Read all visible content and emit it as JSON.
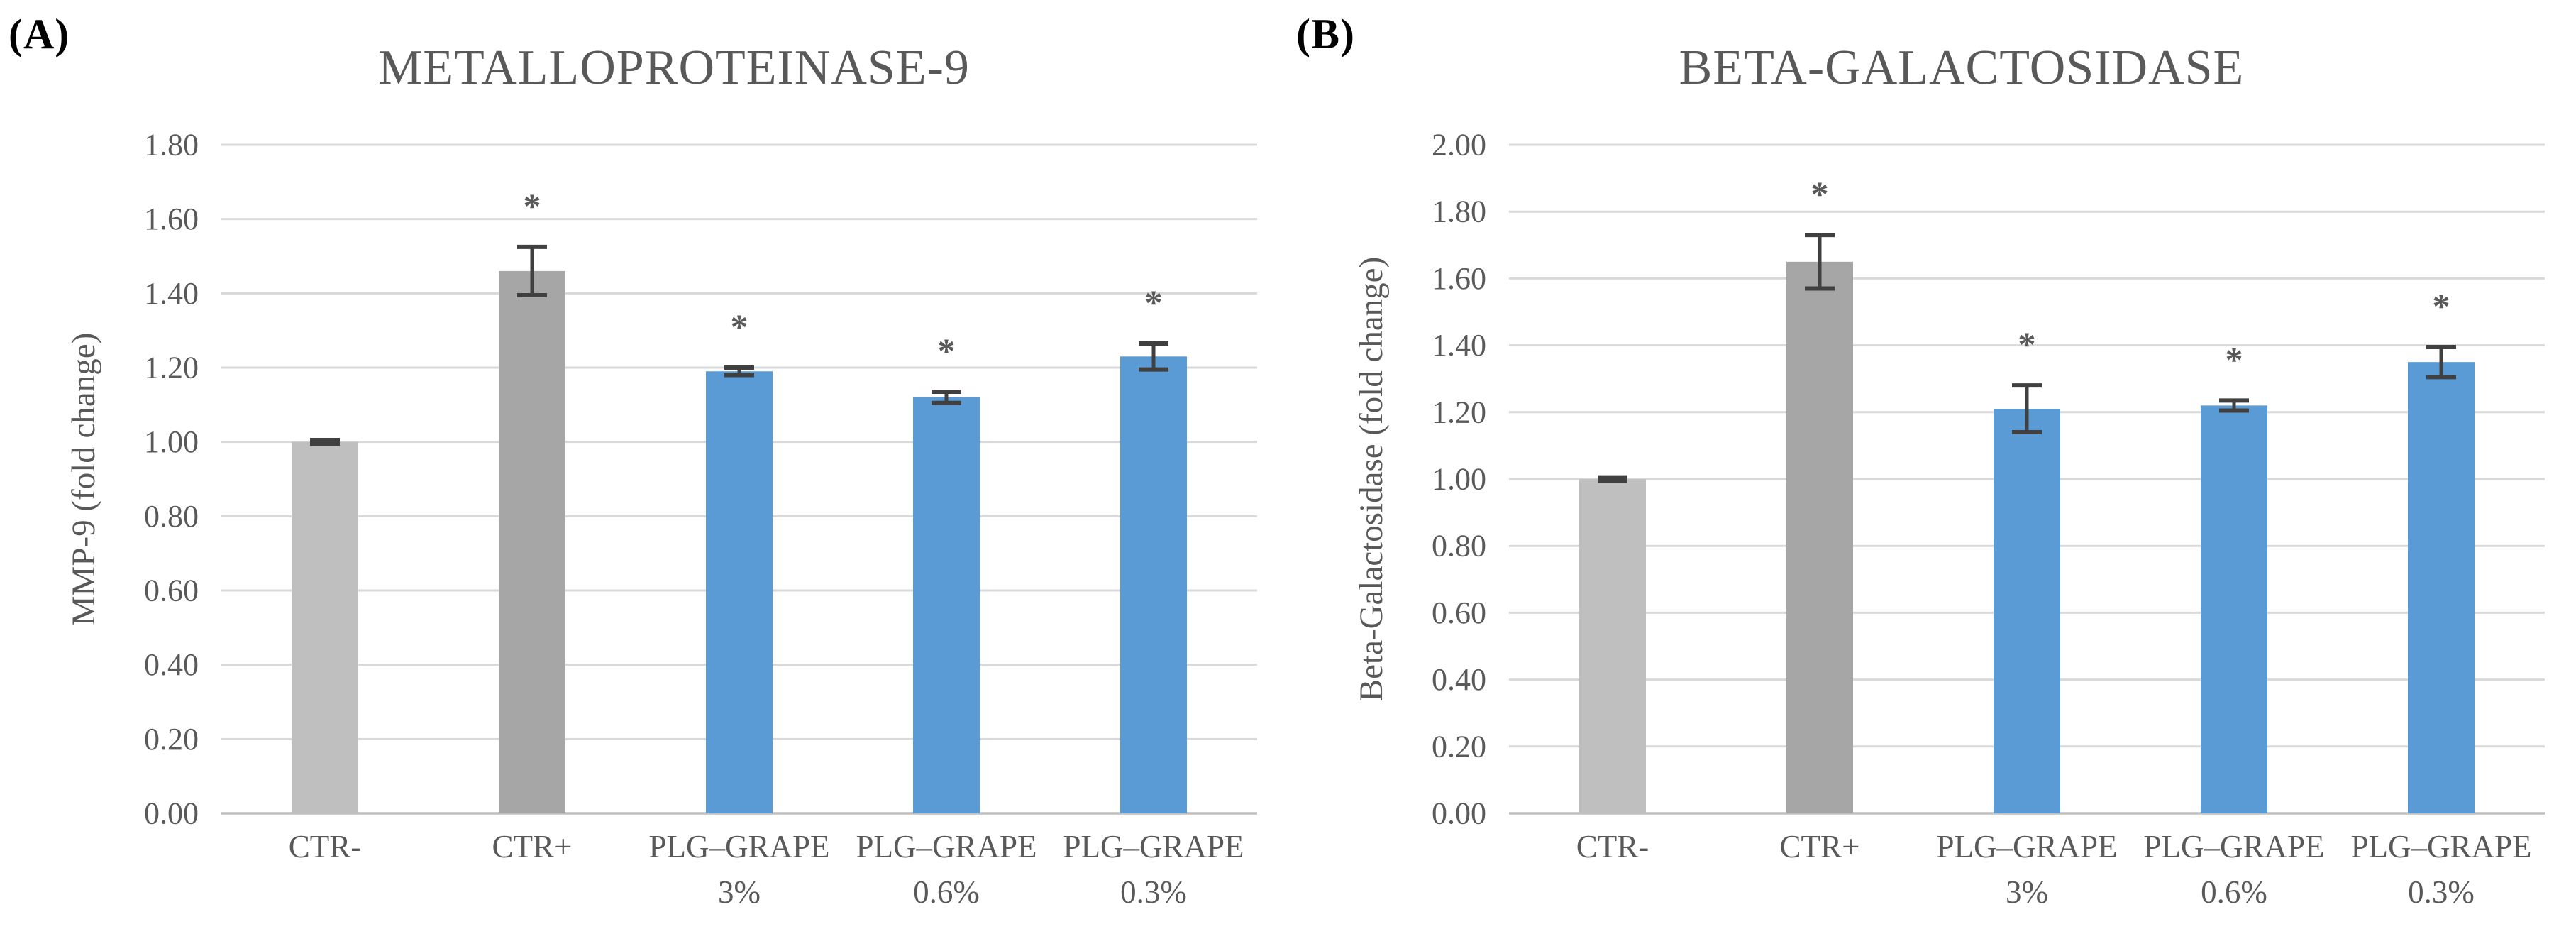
{
  "figure": {
    "background": "#ffffff"
  },
  "colors": {
    "bar_light_gray": "#BFBFBF",
    "bar_dark_gray": "#A6A6A6",
    "bar_blue": "#5B9BD5",
    "gridline": "#D9D9D9",
    "baseline": "#BFBFBF",
    "error_bar": "#404040",
    "text": "#595959",
    "panel_letter": "#000000"
  },
  "chart_data": [
    {
      "type": "bar",
      "panel_label": "(A)",
      "title": "METALLOPROTEINASE-9",
      "xlabel": "",
      "ylabel": "MMP-9 (fold change)",
      "ylim": [
        0,
        1.8
      ],
      "ytick_step": 0.2,
      "grid": true,
      "legend": "none",
      "categories": [
        {
          "label": "CTR-",
          "sublabel": ""
        },
        {
          "label": "CTR+",
          "sublabel": ""
        },
        {
          "label": "PLG–GRAPE",
          "sublabel": "3%"
        },
        {
          "label": "PLG–GRAPE",
          "sublabel": "0.6%"
        },
        {
          "label": "PLG–GRAPE",
          "sublabel": "0.3%"
        }
      ],
      "values": [
        1.0,
        1.46,
        1.19,
        1.12,
        1.23
      ],
      "errors": [
        0.005,
        0.065,
        0.01,
        0.015,
        0.035
      ],
      "significance": [
        "",
        "*",
        "*",
        "*",
        "*"
      ],
      "bar_colors": [
        "#BFBFBF",
        "#A6A6A6",
        "#5B9BD5",
        "#5B9BD5",
        "#5B9BD5"
      ]
    },
    {
      "type": "bar",
      "panel_label": "(B)",
      "title": "BETA-GALACTOSIDASE",
      "xlabel": "",
      "ylabel": "Beta-Galactosidase (fold change)",
      "ylim": [
        0,
        2.0
      ],
      "ytick_step": 0.2,
      "grid": true,
      "legend": "none",
      "categories": [
        {
          "label": "CTR-",
          "sublabel": ""
        },
        {
          "label": "CTR+",
          "sublabel": ""
        },
        {
          "label": "PLG–GRAPE",
          "sublabel": "3%"
        },
        {
          "label": "PLG–GRAPE",
          "sublabel": "0.6%"
        },
        {
          "label": "PLG–GRAPE",
          "sublabel": "0.3%"
        }
      ],
      "values": [
        1.0,
        1.65,
        1.21,
        1.22,
        1.35
      ],
      "errors": [
        0.005,
        0.08,
        0.07,
        0.015,
        0.045
      ],
      "significance": [
        "",
        "*",
        "*",
        "*",
        "*"
      ],
      "bar_colors": [
        "#BFBFBF",
        "#A6A6A6",
        "#5B9BD5",
        "#5B9BD5",
        "#5B9BD5"
      ]
    }
  ]
}
